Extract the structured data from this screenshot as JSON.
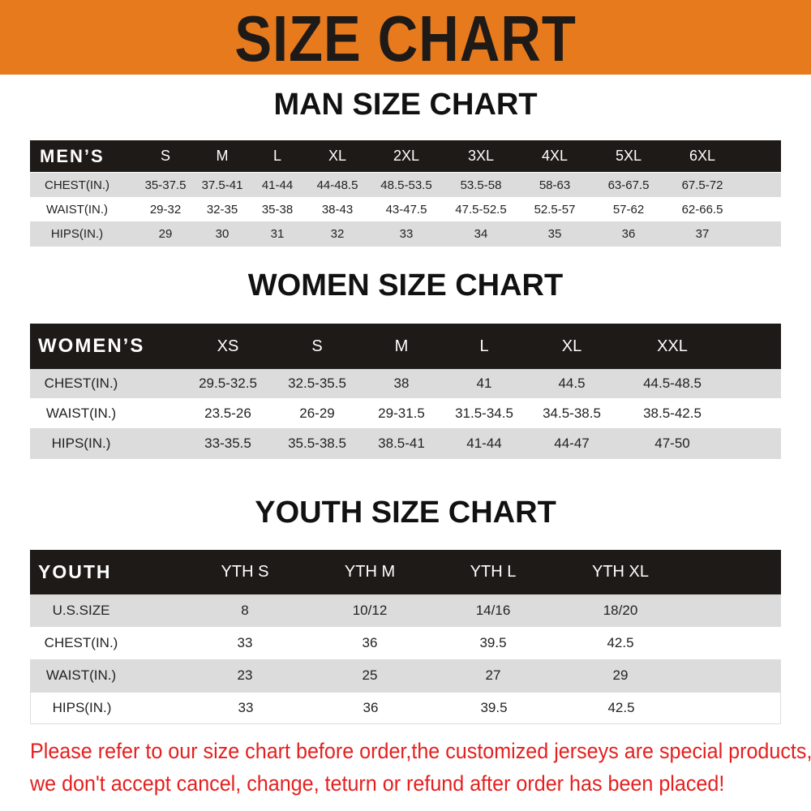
{
  "title": "SIZE CHART",
  "colors": {
    "banner": "#e87a1e",
    "header_row": "#1e1a17",
    "stripe": "#dcdcdc",
    "note": "#e4201f"
  },
  "men": {
    "title": "MAN SIZE CHART",
    "header": [
      "MEN’S",
      "S",
      "M",
      "L",
      "XL",
      "2XL",
      "3XL",
      "4XL",
      "5XL",
      "6XL"
    ],
    "rows": [
      [
        "CHEST(IN.)",
        "35-37.5",
        "37.5-41",
        "41-44",
        "44-48.5",
        "48.5-53.5",
        "53.5-58",
        "58-63",
        "63-67.5",
        "67.5-72"
      ],
      [
        "WAIST(IN.)",
        "29-32",
        "32-35",
        "35-38",
        "38-43",
        "43-47.5",
        "47.5-52.5",
        "52.5-57",
        "57-62",
        "62-66.5"
      ],
      [
        "HIPS(IN.)",
        "29",
        "30",
        "31",
        "32",
        "33",
        "34",
        "35",
        "36",
        "37"
      ]
    ]
  },
  "women": {
    "title": "WOMEN SIZE CHART",
    "header": [
      "WOMEN’S",
      "XS",
      "S",
      "M",
      "L",
      "XL",
      "XXL"
    ],
    "rows": [
      [
        "CHEST(IN.)",
        "29.5-32.5",
        "32.5-35.5",
        "38",
        "41",
        "44.5",
        "44.5-48.5"
      ],
      [
        "WAIST(IN.)",
        "23.5-26",
        "26-29",
        "29-31.5",
        "31.5-34.5",
        "34.5-38.5",
        "38.5-42.5"
      ],
      [
        "HIPS(IN.)",
        "33-35.5",
        "35.5-38.5",
        "38.5-41",
        "41-44",
        "44-47",
        "47-50"
      ]
    ]
  },
  "youth": {
    "title": "YOUTH SIZE CHART",
    "header": [
      "YOUTH",
      "YTH S",
      "YTH M",
      "YTH L",
      "YTH XL"
    ],
    "rows": [
      [
        "U.S.SIZE",
        "8",
        "10/12",
        "14/16",
        "18/20"
      ],
      [
        "CHEST(IN.)",
        "33",
        "36",
        "39.5",
        "42.5"
      ],
      [
        "WAIST(IN.)",
        "23",
        "25",
        "27",
        "29"
      ],
      [
        "HIPS(IN.)",
        "33",
        "36",
        "39.5",
        "42.5"
      ]
    ]
  },
  "notice": [
    "Please refer to our size chart before order,the customized jerseys are special products,",
    "we don't accept cancel, change, teturn or refund after order has been placed!"
  ]
}
